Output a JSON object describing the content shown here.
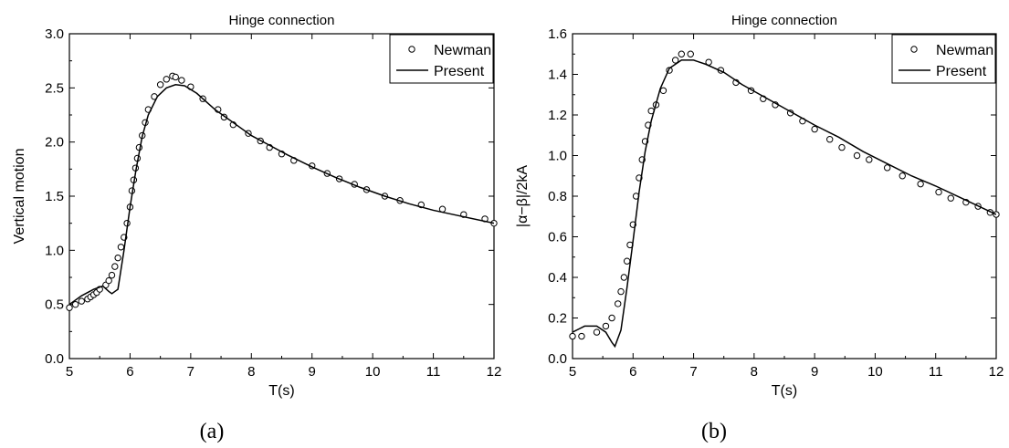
{
  "chart_data": [
    {
      "type": "line",
      "title": "Hinge connection",
      "xlabel": "T(s)",
      "ylabel": "Vertical motion",
      "caption": "(a)",
      "xlim": [
        5,
        12
      ],
      "ylim": [
        0,
        3.0
      ],
      "xticks": [
        "5",
        "6",
        "7",
        "8",
        "9",
        "10",
        "11",
        "12"
      ],
      "yticks": [
        "0.0",
        "0.5",
        "1.0",
        "1.5",
        "2.0",
        "2.5",
        "3.0"
      ],
      "legend_position": "top-right",
      "grid": false,
      "series": [
        {
          "name": "Newman",
          "style": "open-circle-markers",
          "x": [
            5.0,
            5.1,
            5.2,
            5.3,
            5.35,
            5.4,
            5.45,
            5.5,
            5.6,
            5.65,
            5.7,
            5.75,
            5.8,
            5.85,
            5.9,
            5.95,
            6.0,
            6.03,
            6.06,
            6.09,
            6.12,
            6.15,
            6.2,
            6.25,
            6.3,
            6.4,
            6.5,
            6.6,
            6.7,
            6.75,
            6.85,
            7.0,
            7.2,
            7.45,
            7.55,
            7.7,
            7.95,
            8.15,
            8.3,
            8.5,
            8.7,
            9.0,
            9.25,
            9.45,
            9.7,
            9.9,
            10.2,
            10.45,
            10.8,
            11.15,
            11.5,
            11.85,
            12.0
          ],
          "y": [
            0.47,
            0.5,
            0.53,
            0.55,
            0.57,
            0.59,
            0.61,
            0.64,
            0.68,
            0.72,
            0.77,
            0.85,
            0.93,
            1.03,
            1.12,
            1.25,
            1.4,
            1.55,
            1.65,
            1.76,
            1.85,
            1.95,
            2.06,
            2.18,
            2.3,
            2.42,
            2.53,
            2.58,
            2.61,
            2.6,
            2.57,
            2.51,
            2.4,
            2.3,
            2.23,
            2.16,
            2.08,
            2.01,
            1.95,
            1.89,
            1.83,
            1.78,
            1.71,
            1.66,
            1.61,
            1.56,
            1.5,
            1.46,
            1.42,
            1.38,
            1.33,
            1.29,
            1.25
          ]
        },
        {
          "name": "Present",
          "style": "solid-line",
          "x": [
            5.0,
            5.2,
            5.4,
            5.55,
            5.65,
            5.7,
            5.8,
            5.9,
            6.0,
            6.1,
            6.2,
            6.3,
            6.45,
            6.6,
            6.75,
            6.9,
            7.1,
            7.4,
            7.7,
            8.0,
            8.3,
            8.6,
            9.0,
            9.4,
            9.8,
            10.2,
            10.6,
            11.0,
            11.5,
            12.0
          ],
          "y": [
            0.5,
            0.58,
            0.64,
            0.67,
            0.62,
            0.6,
            0.64,
            1.0,
            1.4,
            1.75,
            2.05,
            2.25,
            2.42,
            2.5,
            2.53,
            2.52,
            2.45,
            2.3,
            2.18,
            2.06,
            1.97,
            1.88,
            1.77,
            1.67,
            1.58,
            1.5,
            1.43,
            1.37,
            1.31,
            1.25
          ]
        }
      ]
    },
    {
      "type": "line",
      "title": "Hinge connection",
      "xlabel": "T(s)",
      "ylabel": "|α−β|/2kA",
      "caption": "(b)",
      "xlim": [
        5,
        12
      ],
      "ylim": [
        0,
        1.6
      ],
      "xticks": [
        "5",
        "6",
        "7",
        "8",
        "9",
        "10",
        "11",
        "12"
      ],
      "yticks": [
        "0.0",
        "0.2",
        "0.4",
        "0.6",
        "0.8",
        "1.0",
        "1.2",
        "1.4",
        "1.6"
      ],
      "legend_position": "top-right",
      "grid": false,
      "series": [
        {
          "name": "Newman",
          "style": "open-circle-markers",
          "x": [
            5.0,
            5.15,
            5.4,
            5.55,
            5.65,
            5.75,
            5.8,
            5.85,
            5.9,
            5.95,
            6.0,
            6.05,
            6.1,
            6.15,
            6.2,
            6.25,
            6.3,
            6.38,
            6.5,
            6.6,
            6.7,
            6.8,
            6.95,
            7.25,
            7.45,
            7.7,
            7.95,
            8.15,
            8.35,
            8.6,
            8.8,
            9.0,
            9.25,
            9.45,
            9.7,
            9.9,
            10.2,
            10.45,
            10.75,
            11.05,
            11.25,
            11.5,
            11.7,
            11.9,
            12.0
          ],
          "y": [
            0.11,
            0.11,
            0.13,
            0.16,
            0.2,
            0.27,
            0.33,
            0.4,
            0.48,
            0.56,
            0.66,
            0.8,
            0.89,
            0.98,
            1.07,
            1.15,
            1.22,
            1.25,
            1.32,
            1.42,
            1.47,
            1.5,
            1.5,
            1.46,
            1.42,
            1.36,
            1.32,
            1.28,
            1.25,
            1.21,
            1.17,
            1.13,
            1.08,
            1.04,
            1.0,
            0.98,
            0.94,
            0.9,
            0.86,
            0.82,
            0.79,
            0.77,
            0.75,
            0.72,
            0.71
          ]
        },
        {
          "name": "Present",
          "style": "solid-line",
          "x": [
            5.0,
            5.2,
            5.4,
            5.55,
            5.65,
            5.7,
            5.8,
            5.9,
            6.0,
            6.1,
            6.2,
            6.3,
            6.45,
            6.6,
            6.8,
            7.0,
            7.2,
            7.5,
            7.8,
            8.1,
            8.4,
            8.7,
            9.0,
            9.4,
            9.8,
            10.2,
            10.6,
            11.0,
            11.5,
            12.0
          ],
          "y": [
            0.13,
            0.16,
            0.16,
            0.13,
            0.08,
            0.06,
            0.14,
            0.35,
            0.58,
            0.82,
            1.02,
            1.17,
            1.33,
            1.43,
            1.47,
            1.47,
            1.45,
            1.41,
            1.35,
            1.3,
            1.25,
            1.2,
            1.15,
            1.09,
            1.02,
            0.96,
            0.9,
            0.85,
            0.78,
            0.71
          ]
        }
      ]
    }
  ]
}
